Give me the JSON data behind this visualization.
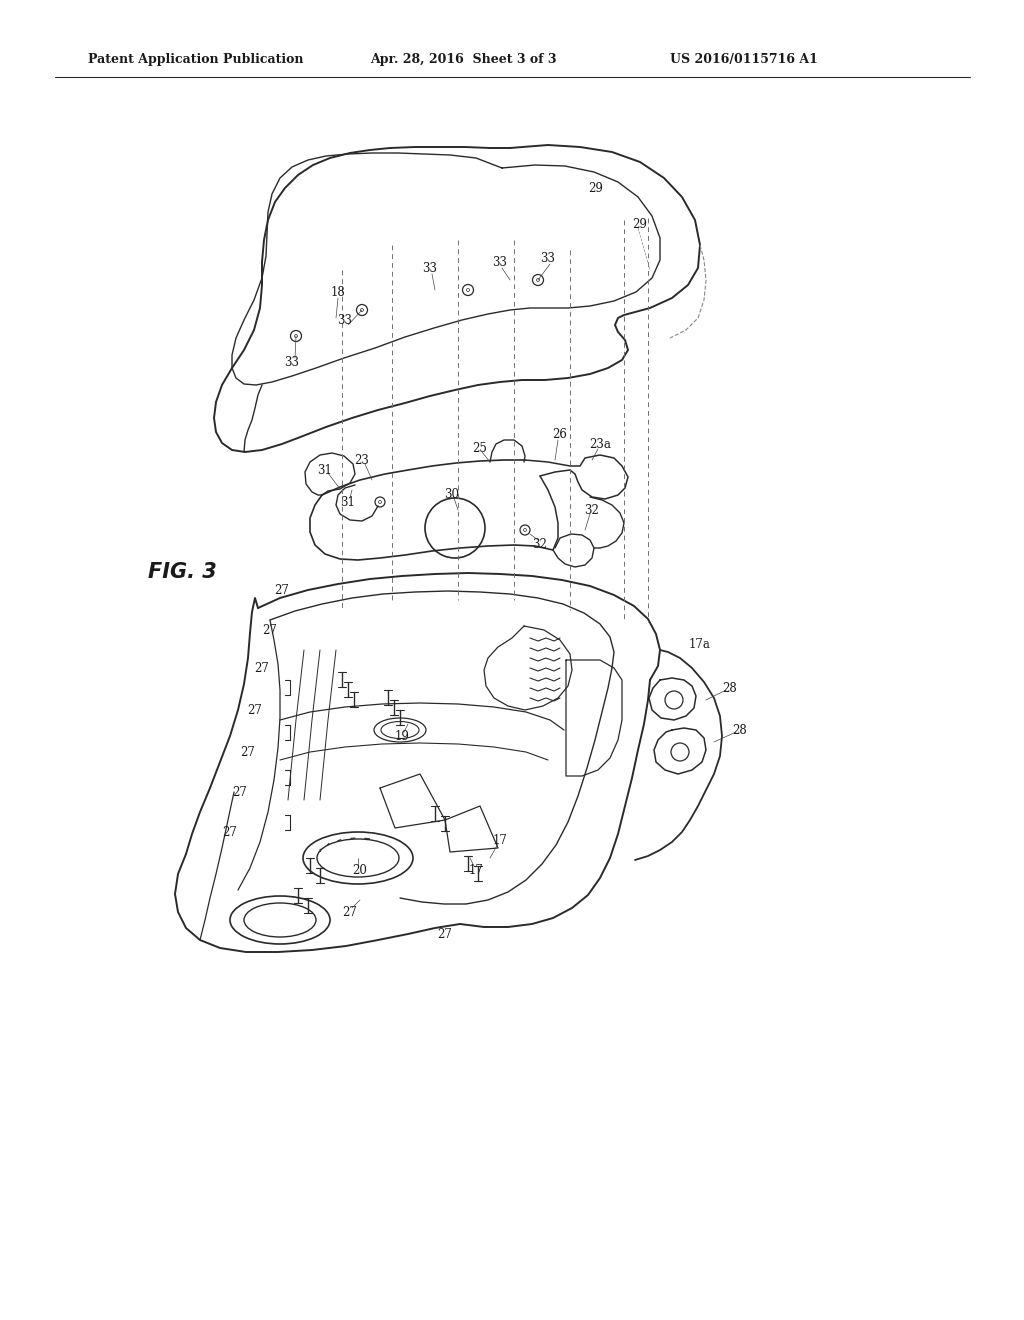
{
  "title_left": "Patent Application Publication",
  "title_mid": "Apr. 28, 2016  Sheet 3 of 3",
  "title_right": "US 2016/0115716 A1",
  "fig_label": "FIG. 3",
  "background_color": "#ffffff",
  "line_color": "#2a2a2a",
  "text_color": "#1a1a1a",
  "header_fontsize": 9,
  "fig_label_fontsize": 15,
  "ref_fontsize": 8.5
}
